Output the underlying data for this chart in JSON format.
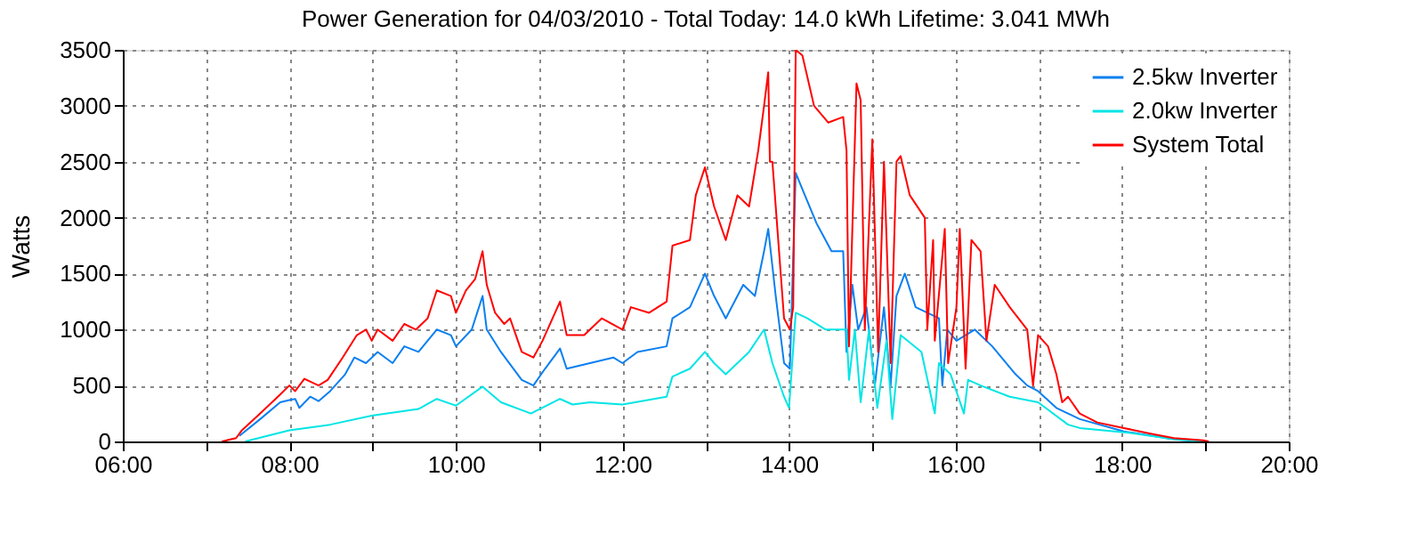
{
  "chart_data": {
    "type": "line",
    "title": "Power Generation for 04/03/2010 - Total Today: 14.0 kWh   Lifetime: 3.041 MWh",
    "ylabel": "Watts",
    "xlim": [
      6,
      20
    ],
    "ylim": [
      0,
      3500
    ],
    "xticks": [
      {
        "value": 6,
        "label": "06:00"
      },
      {
        "value": 7,
        "label": null
      },
      {
        "value": 8,
        "label": "08:00"
      },
      {
        "value": 9,
        "label": null
      },
      {
        "value": 10,
        "label": "10:00"
      },
      {
        "value": 11,
        "label": null
      },
      {
        "value": 12,
        "label": "12:00"
      },
      {
        "value": 13,
        "label": null
      },
      {
        "value": 14,
        "label": "14:00"
      },
      {
        "value": 15,
        "label": null
      },
      {
        "value": 16,
        "label": "16:00"
      },
      {
        "value": 17,
        "label": null
      },
      {
        "value": 18,
        "label": "18:00"
      },
      {
        "value": 19,
        "label": null
      },
      {
        "value": 20,
        "label": "20:00"
      }
    ],
    "yticks": [
      0,
      500,
      1000,
      1500,
      2000,
      2500,
      3000,
      3500
    ],
    "grid": true,
    "legend": "top right",
    "marker": "none",
    "line_style": "solid",
    "series": [
      {
        "name": "2.5kw Inverter",
        "color": "#0a7ff0",
        "x": [
          7.4,
          7.65,
          7.89,
          8.0,
          8.07,
          8.12,
          8.25,
          8.35,
          8.49,
          8.67,
          8.78,
          8.92,
          9.06,
          9.24,
          9.38,
          9.55,
          9.77,
          9.94,
          10.0,
          10.19,
          10.32,
          10.37,
          10.54,
          10.79,
          10.93,
          11.07,
          11.25,
          11.33,
          11.61,
          11.89,
          12.0,
          12.18,
          12.53,
          12.6,
          12.81,
          12.99,
          13.1,
          13.24,
          13.45,
          13.59,
          13.7,
          13.75,
          13.84,
          13.94,
          14.01,
          14.08,
          14.19,
          14.33,
          14.51,
          14.65,
          14.69,
          14.76,
          14.83,
          14.93,
          15.03,
          15.14,
          15.22,
          15.29,
          15.39,
          15.52,
          15.66,
          15.8,
          15.84,
          15.9,
          16.01,
          16.23,
          16.44,
          16.72,
          16.86,
          16.99,
          17.21,
          17.35,
          17.49,
          18.02,
          18.62,
          18.97
        ],
        "values": [
          50,
          200,
          350,
          370,
          380,
          300,
          400,
          360,
          450,
          600,
          750,
          700,
          800,
          700,
          850,
          800,
          1000,
          950,
          850,
          1000,
          1300,
          1000,
          800,
          550,
          500,
          650,
          830,
          650,
          700,
          750,
          700,
          800,
          850,
          1100,
          1200,
          1500,
          1300,
          1100,
          1400,
          1300,
          1700,
          1900,
          1300,
          700,
          650,
          2400,
          2200,
          1950,
          1700,
          1700,
          800,
          1400,
          1000,
          1200,
          500,
          1200,
          500,
          1300,
          1500,
          1200,
          1150,
          1100,
          500,
          1000,
          900,
          1000,
          850,
          600,
          500,
          450,
          300,
          250,
          200,
          90,
          20,
          0
        ]
      },
      {
        "name": "2.0kw Inverter",
        "color": "#00e5e5",
        "x": [
          7.47,
          8.0,
          8.49,
          8.99,
          9.55,
          9.77,
          10.0,
          10.32,
          10.54,
          10.9,
          11.25,
          11.4,
          11.61,
          12.0,
          12.53,
          12.6,
          12.81,
          12.99,
          13.1,
          13.24,
          13.52,
          13.7,
          13.8,
          13.94,
          14.0,
          14.08,
          14.22,
          14.44,
          14.69,
          14.72,
          14.79,
          14.86,
          14.96,
          15.06,
          15.17,
          15.24,
          15.34,
          15.59,
          15.75,
          15.8,
          15.94,
          16.1,
          16.15,
          16.3,
          16.65,
          16.99,
          17.35,
          17.49,
          18.05,
          18.62,
          18.97
        ],
        "values": [
          0,
          100,
          150,
          230,
          290,
          380,
          320,
          490,
          350,
          250,
          380,
          330,
          350,
          330,
          400,
          580,
          650,
          800,
          700,
          600,
          800,
          1000,
          700,
          400,
          300,
          1150,
          1100,
          1000,
          1000,
          550,
          1000,
          350,
          1000,
          300,
          900,
          200,
          950,
          800,
          250,
          700,
          600,
          250,
          550,
          500,
          400,
          350,
          150,
          120,
          80,
          20,
          0
        ]
      },
      {
        "name": "System Total",
        "color": "#ff0000",
        "x": [
          7.19,
          7.36,
          7.43,
          7.65,
          7.89,
          8.0,
          8.07,
          8.18,
          8.35,
          8.46,
          8.64,
          8.81,
          8.92,
          8.99,
          9.06,
          9.24,
          9.38,
          9.52,
          9.66,
          9.77,
          9.94,
          10.0,
          10.12,
          10.23,
          10.32,
          10.37,
          10.47,
          10.58,
          10.65,
          10.79,
          10.93,
          11.04,
          11.25,
          11.33,
          11.54,
          11.75,
          12.0,
          12.1,
          12.32,
          12.53,
          12.6,
          12.81,
          12.88,
          12.99,
          13.1,
          13.24,
          13.38,
          13.52,
          13.63,
          13.7,
          13.75,
          13.77,
          13.8,
          13.87,
          13.94,
          14.01,
          14.05,
          14.08,
          14.16,
          14.3,
          14.47,
          14.65,
          14.69,
          14.72,
          14.81,
          14.86,
          14.91,
          15.0,
          15.07,
          15.14,
          15.22,
          15.29,
          15.34,
          15.45,
          15.63,
          15.66,
          15.73,
          15.75,
          15.87,
          15.91,
          16.01,
          16.05,
          16.12,
          16.19,
          16.3,
          16.37,
          16.47,
          16.65,
          16.86,
          16.93,
          16.99,
          17.11,
          17.21,
          17.28,
          17.35,
          17.49,
          17.7,
          18.02,
          18.34,
          18.62,
          18.97,
          19.04
        ],
        "values": [
          0,
          30,
          100,
          250,
          420,
          500,
          450,
          560,
          500,
          550,
          750,
          950,
          1000,
          900,
          1000,
          900,
          1050,
          1000,
          1100,
          1350,
          1300,
          1150,
          1350,
          1450,
          1700,
          1400,
          1150,
          1050,
          1100,
          800,
          750,
          900,
          1250,
          950,
          950,
          1100,
          1000,
          1200,
          1150,
          1250,
          1750,
          1800,
          2200,
          2450,
          2100,
          1800,
          2200,
          2100,
          2600,
          3000,
          3300,
          2500,
          2500,
          1800,
          1100,
          1000,
          1200,
          3500,
          3450,
          3000,
          2850,
          2900,
          2600,
          850,
          3200,
          3050,
          1000,
          2700,
          800,
          2500,
          700,
          2500,
          2550,
          2200,
          2000,
          1000,
          1800,
          900,
          1900,
          700,
          1200,
          1900,
          650,
          1800,
          1700,
          900,
          1400,
          1200,
          1000,
          500,
          950,
          850,
          600,
          350,
          400,
          250,
          170,
          120,
          70,
          30,
          10,
          0
        ]
      }
    ]
  }
}
